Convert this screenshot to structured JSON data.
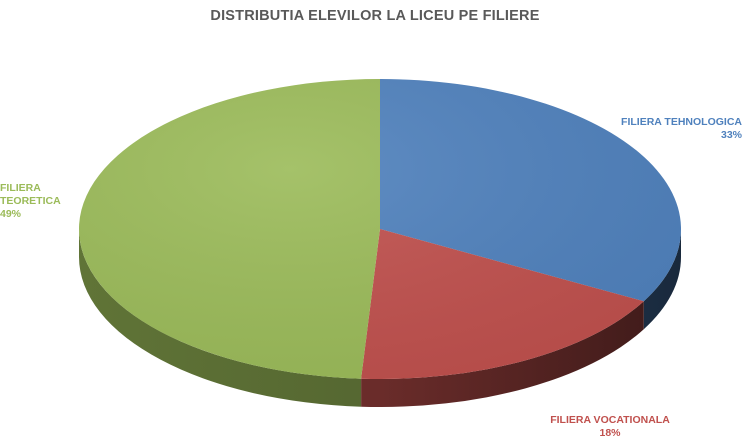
{
  "chart_data": {
    "type": "pie",
    "title": "DISTRIBUTIA ELEVILOR LA LICEU PE FILIERE",
    "slices": [
      {
        "name": "FILIERA TEHNOLOGICA",
        "value": 33,
        "label": "33%",
        "color": "#4f81bd"
      },
      {
        "name": "FILIERA VOCATIONALA",
        "value": 18,
        "label": "18%",
        "color": "#c0504d"
      },
      {
        "name": "FILIERA TEORETICA",
        "value": 49,
        "label": "49%",
        "color": "#9bbb59"
      }
    ],
    "style": "3d"
  }
}
